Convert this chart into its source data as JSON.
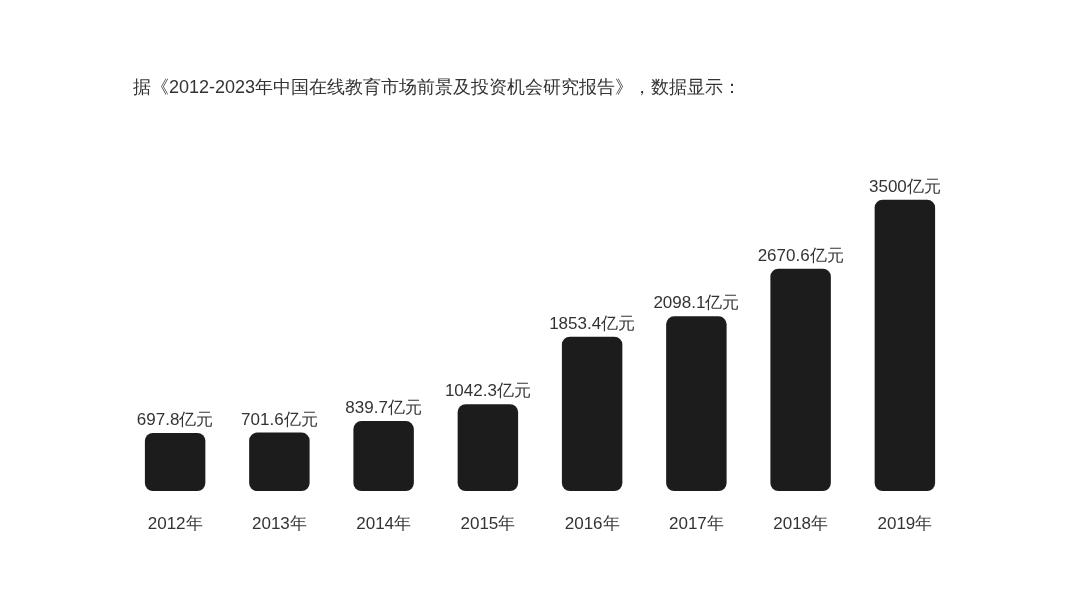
{
  "chart_data": {
    "type": "bar",
    "title": "据《2012-2023年中国在线教育市场前景及投资机会研究报告》，数据显示：",
    "categories": [
      "2012年",
      "2013年",
      "2014年",
      "2015年",
      "2016年",
      "2017年",
      "2018年",
      "2019年"
    ],
    "values": [
      697.8,
      701.6,
      839.7,
      1042.3,
      1853.4,
      2098.1,
      2670.6,
      3500
    ],
    "value_labels": [
      "697.8亿元",
      "701.6亿元",
      "839.7亿元",
      "1042.3亿元",
      "1853.4亿元",
      "2098.1亿元",
      "2670.6亿元",
      "3500亿元"
    ],
    "color": "#1c1c1c"
  }
}
